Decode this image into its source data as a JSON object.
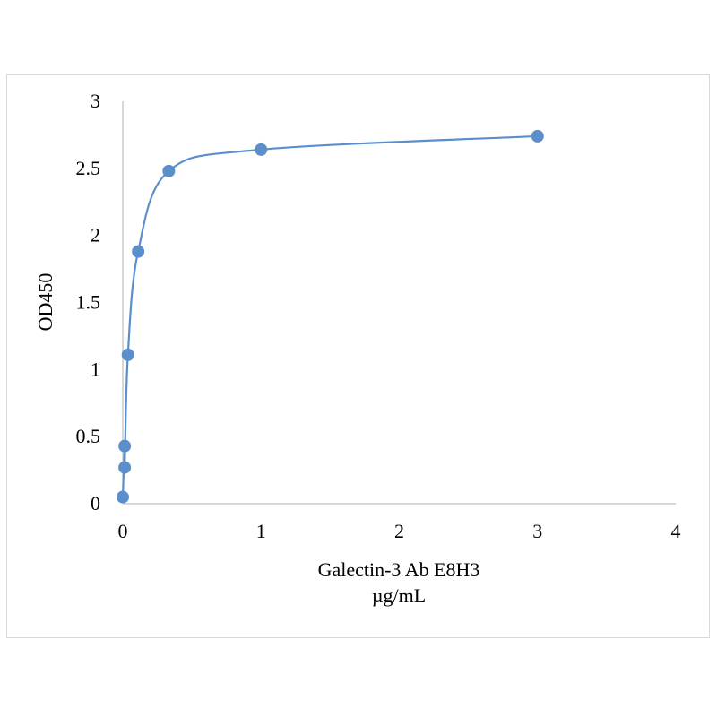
{
  "chart_data": {
    "type": "scatter",
    "title": "",
    "xlabel": "Galectin-3 Ab E8H3",
    "xlabel_unit": "µg/mL",
    "ylabel": "OD450",
    "xlim": [
      0,
      4
    ],
    "ylim": [
      0,
      3
    ],
    "x_ticks": [
      "0",
      "1",
      "2",
      "3",
      "4"
    ],
    "y_ticks": [
      "0",
      "0.5",
      "1",
      "1.5",
      "2",
      "2.5",
      "3"
    ],
    "grid": false,
    "legend": "none",
    "series": [
      {
        "color": "#5b8fcb",
        "trendline": "smooth",
        "x": [
          0.0,
          0.0137,
          0.0137,
          0.037,
          0.111,
          0.333,
          1,
          3
        ],
        "y": [
          0.05,
          0.27,
          0.43,
          1.11,
          1.88,
          2.48,
          2.64,
          2.74
        ]
      }
    ]
  }
}
